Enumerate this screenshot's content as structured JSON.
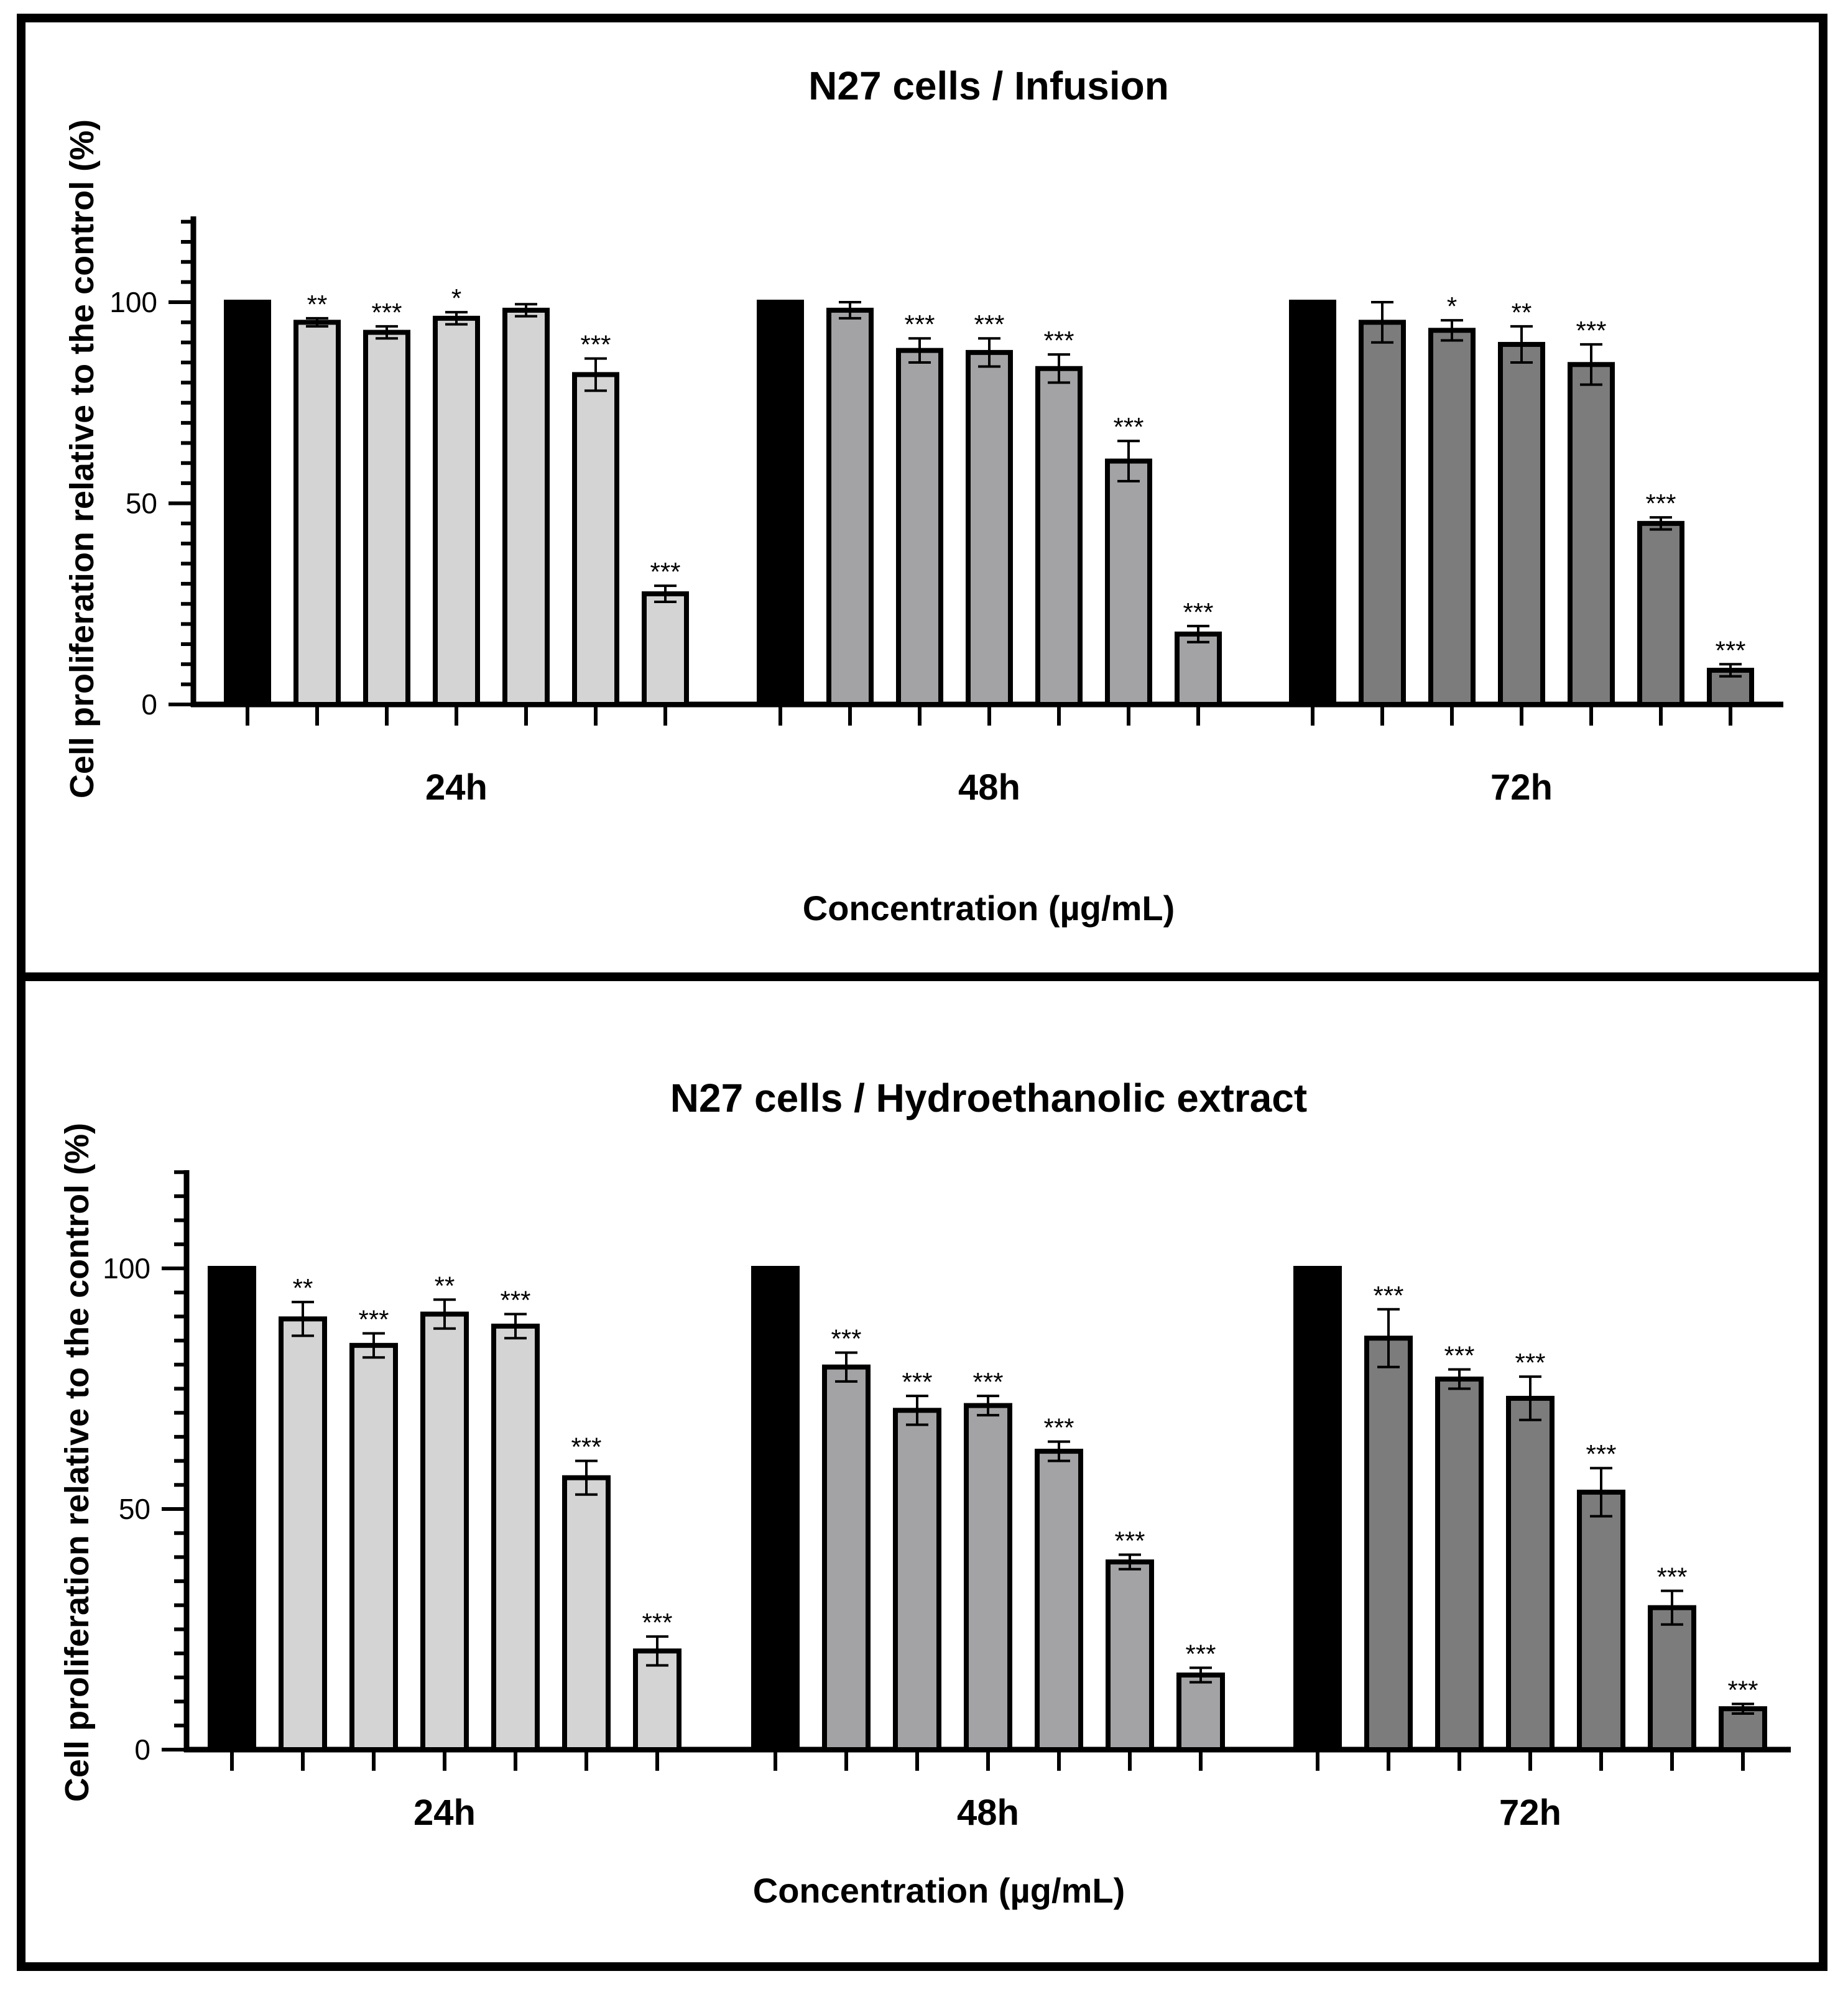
{
  "chart_data": [
    {
      "type": "bar",
      "title": "N27 cells  / Infusion",
      "xlabel": "Concentration (µg/mL)",
      "ylabel": "Cell proliferation relative to the control (%)",
      "ylim": [
        0,
        120
      ],
      "yticks": [
        0,
        50,
        100
      ],
      "grid": false,
      "colors": {
        "control": "#000000",
        "24h": "#d4d4d4",
        "48h": "#a3a3a5",
        "72h": "#7c7c7c"
      },
      "groups": [
        {
          "label": "24h",
          "values": [
            100,
            95,
            92.5,
            96,
            98,
            82,
            27.5
          ],
          "errors": [
            0,
            1,
            1.5,
            1.5,
            1.5,
            4,
            2
          ],
          "sig": [
            "",
            "**",
            "***",
            "*",
            "",
            "***",
            "***"
          ]
        },
        {
          "label": "48h",
          "values": [
            100,
            98,
            88,
            87.5,
            83.5,
            60.5,
            17.5
          ],
          "errors": [
            0,
            2,
            3,
            3.5,
            3.5,
            5,
            2
          ],
          "sig": [
            "",
            "",
            "***",
            "***",
            "***",
            "***",
            "***"
          ]
        },
        {
          "label": "72h",
          "values": [
            100,
            95,
            93,
            89.5,
            84.5,
            45,
            8.5
          ],
          "errors": [
            0,
            5,
            2.5,
            4.5,
            5,
            1.5,
            1.5
          ],
          "sig": [
            "",
            "",
            "*",
            "**",
            "***",
            "***",
            "***"
          ]
        }
      ]
    },
    {
      "type": "bar",
      "title": "N27  cells / Hydroethanolic extract",
      "xlabel": "Concentration (µg/mL)",
      "ylabel": "Cell proliferation relative to the control (%)",
      "ylim": [
        0,
        120
      ],
      "yticks": [
        0,
        50,
        100
      ],
      "grid": false,
      "colors": {
        "control": "#000000",
        "24h": "#d4d4d4",
        "48h": "#a3a3a5",
        "72h": "#7c7c7c"
      },
      "groups": [
        {
          "label": "24h",
          "values": [
            100,
            89.5,
            84,
            90.5,
            88,
            56.5,
            20.5
          ],
          "errors": [
            0,
            3.5,
            2.5,
            3,
            2.5,
            3.5,
            3
          ],
          "sig": [
            "",
            "**",
            "***",
            "**",
            "***",
            "***",
            "***"
          ]
        },
        {
          "label": "48h",
          "values": [
            100,
            79.5,
            70.5,
            71.5,
            62,
            39,
            15.5
          ],
          "errors": [
            0,
            3,
            3,
            2,
            2,
            1.5,
            1.5
          ],
          "sig": [
            "",
            "***",
            "***",
            "***",
            "***",
            "***",
            "***"
          ]
        },
        {
          "label": "72h",
          "values": [
            100,
            85.5,
            77,
            73,
            53.5,
            29.5,
            8.5
          ],
          "errors": [
            0,
            6,
            2,
            4.5,
            5,
            3.5,
            1
          ],
          "sig": [
            "",
            "***",
            "***",
            "***",
            "***",
            "***",
            "***"
          ]
        }
      ]
    }
  ]
}
